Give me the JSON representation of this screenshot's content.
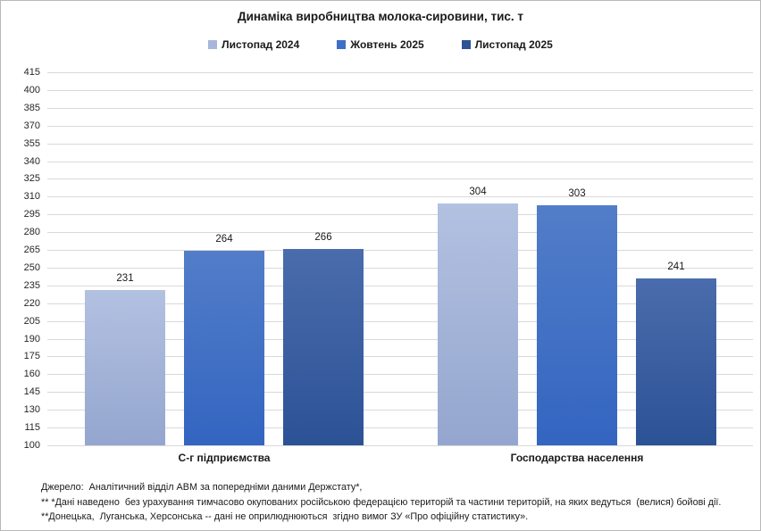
{
  "title": "Динаміка виробництва молока-сировини, тис. т",
  "chart_data": {
    "type": "bar",
    "title": "Динаміка виробництва молока-сировини, тис. т",
    "categories": [
      "С-г підприємства",
      "Господарства населення"
    ],
    "series": [
      {
        "name": "Листопад 2024",
        "values": [
          231,
          304
        ],
        "swatch": "#a7b6da",
        "gradient_top": "#b3c1e1",
        "gradient_bottom": "#94a6cf"
      },
      {
        "name": "Жовтень 2025",
        "values": [
          264,
          303
        ],
        "swatch": "#3e6ec6",
        "gradient_top": "#527dc8",
        "gradient_bottom": "#3365c1"
      },
      {
        "name": "Листопад 2025",
        "values": [
          266,
          241
        ],
        "swatch": "#2d5295",
        "gradient_top": "#4a6cac",
        "gradient_bottom": "#2c5296"
      }
    ],
    "ylim": [
      100,
      415
    ],
    "ytick_step": 15,
    "grid": true,
    "gridline_color": "#d9d9d9",
    "legend_position": "top"
  },
  "footer": {
    "lines": [
      "Джерело:  Аналітичний відділ АВМ за попередніми даними Держстату*,",
      "** *Дані наведено  без урахування тимчасово окупованих російською федерацією територій та частини територій, на яких ведуться  (велися) бойові дії.",
      "**Донецька,  Луганська, Херсонська -- дані не оприлюднюються  згідно вимог ЗУ «Про офіційну статистику»."
    ]
  }
}
